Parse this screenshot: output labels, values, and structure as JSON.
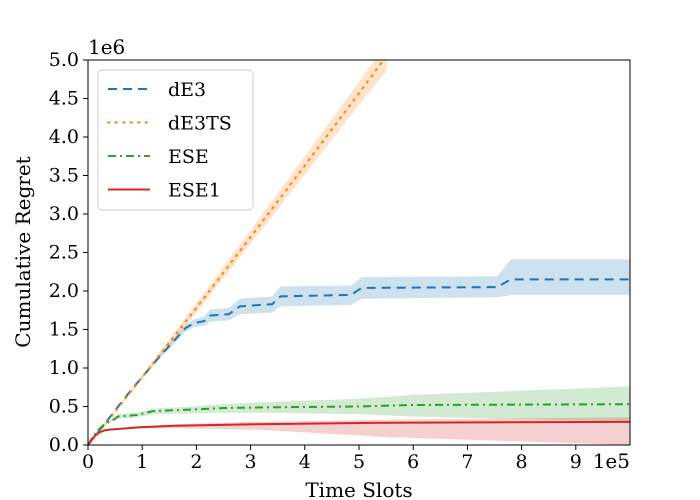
{
  "chart_data": {
    "type": "line",
    "title": "",
    "xlabel": "Time Slots",
    "ylabel": "Cumulative Regret",
    "x_offset_label": "1e5",
    "y_offset_label": "1e6",
    "xlim": [
      0,
      10
    ],
    "ylim": [
      0,
      5.0
    ],
    "xticks": [
      0,
      1,
      2,
      3,
      4,
      5,
      6,
      7,
      8,
      9
    ],
    "xtick_labels": [
      "0",
      "1",
      "2",
      "3",
      "4",
      "5",
      "6",
      "7",
      "8",
      "9"
    ],
    "yticks": [
      0,
      0.5,
      1.0,
      1.5,
      2.0,
      2.5,
      3.0,
      3.5,
      4.0,
      4.5,
      5.0
    ],
    "ytick_labels": [
      "0.0",
      "0.5",
      "1.0",
      "1.5",
      "2.0",
      "2.5",
      "3.0",
      "3.5",
      "4.0",
      "4.5",
      "5.0"
    ],
    "grid": false,
    "legend_position": "upper-left",
    "series": [
      {
        "name": "dE3",
        "color": "#1f77b4",
        "dash": "dashed",
        "points": [
          [
            0,
            0
          ],
          [
            0.3,
            0.27
          ],
          [
            0.8,
            0.72
          ],
          [
            1.3,
            1.13
          ],
          [
            1.8,
            1.52
          ],
          [
            1.95,
            1.58
          ],
          [
            2.15,
            1.61
          ],
          [
            2.25,
            1.68
          ],
          [
            2.6,
            1.7
          ],
          [
            2.8,
            1.8
          ],
          [
            3.4,
            1.83
          ],
          [
            3.55,
            1.93
          ],
          [
            4.85,
            1.95
          ],
          [
            5.05,
            2.04
          ],
          [
            7.55,
            2.05
          ],
          [
            7.8,
            2.15
          ],
          [
            10,
            2.15
          ]
        ],
        "upper": [
          [
            0,
            0
          ],
          [
            0.3,
            0.27
          ],
          [
            0.8,
            0.72
          ],
          [
            1.3,
            1.16
          ],
          [
            1.8,
            1.56
          ],
          [
            1.95,
            1.63
          ],
          [
            2.15,
            1.67
          ],
          [
            2.25,
            1.76
          ],
          [
            2.6,
            1.78
          ],
          [
            2.8,
            1.9
          ],
          [
            3.4,
            1.93
          ],
          [
            3.55,
            2.06
          ],
          [
            4.85,
            2.07
          ],
          [
            5.05,
            2.18
          ],
          [
            7.55,
            2.19
          ],
          [
            7.8,
            2.41
          ],
          [
            10,
            2.41
          ]
        ],
        "lower": [
          [
            0,
            0
          ],
          [
            0.3,
            0.27
          ],
          [
            0.8,
            0.72
          ],
          [
            1.3,
            1.11
          ],
          [
            1.8,
            1.47
          ],
          [
            1.95,
            1.53
          ],
          [
            2.15,
            1.55
          ],
          [
            2.25,
            1.6
          ],
          [
            2.6,
            1.62
          ],
          [
            2.8,
            1.7
          ],
          [
            3.4,
            1.72
          ],
          [
            3.55,
            1.8
          ],
          [
            4.85,
            1.82
          ],
          [
            5.05,
            1.9
          ],
          [
            7.55,
            1.92
          ],
          [
            7.8,
            1.95
          ],
          [
            10,
            1.95
          ]
        ]
      },
      {
        "name": "dE3TS",
        "color": "#ff7f0e",
        "dash": "dotted",
        "points": [
          [
            0,
            0
          ],
          [
            0.25,
            0.21
          ],
          [
            1,
            0.88
          ],
          [
            2,
            1.78
          ],
          [
            3,
            2.7
          ],
          [
            4,
            3.63
          ],
          [
            5,
            4.57
          ],
          [
            5.45,
            5.0
          ]
        ],
        "upper": [
          [
            0,
            0
          ],
          [
            0.25,
            0.22
          ],
          [
            1,
            0.91
          ],
          [
            2,
            1.84
          ],
          [
            3,
            2.79
          ],
          [
            4,
            3.75
          ],
          [
            5,
            4.72
          ],
          [
            5.55,
            5.25
          ]
        ],
        "lower": [
          [
            0,
            0
          ],
          [
            0.25,
            0.2
          ],
          [
            1,
            0.85
          ],
          [
            2,
            1.72
          ],
          [
            3,
            2.61
          ],
          [
            4,
            3.51
          ],
          [
            5,
            4.42
          ],
          [
            5.5,
            4.85
          ]
        ]
      },
      {
        "name": "ESE",
        "color": "#2ca02c",
        "dash": "dashdot",
        "points": [
          [
            0,
            0
          ],
          [
            0.1,
            0.12
          ],
          [
            0.2,
            0.2
          ],
          [
            0.3,
            0.27
          ],
          [
            0.5,
            0.34
          ],
          [
            0.55,
            0.37
          ],
          [
            0.9,
            0.39
          ],
          [
            1.2,
            0.44
          ],
          [
            1.9,
            0.46
          ],
          [
            2.5,
            0.48
          ],
          [
            3.4,
            0.49
          ],
          [
            5,
            0.5
          ],
          [
            6,
            0.52
          ],
          [
            10,
            0.53
          ]
        ],
        "upper": [
          [
            0,
            0
          ],
          [
            0.1,
            0.12
          ],
          [
            0.2,
            0.21
          ],
          [
            0.3,
            0.29
          ],
          [
            0.5,
            0.36
          ],
          [
            0.55,
            0.4
          ],
          [
            0.9,
            0.42
          ],
          [
            1.2,
            0.47
          ],
          [
            1.9,
            0.5
          ],
          [
            2.5,
            0.53
          ],
          [
            3.4,
            0.56
          ],
          [
            5,
            0.6
          ],
          [
            6,
            0.65
          ],
          [
            10,
            0.76
          ]
        ],
        "lower": [
          [
            0,
            0
          ],
          [
            0.1,
            0.11
          ],
          [
            0.2,
            0.19
          ],
          [
            0.3,
            0.25
          ],
          [
            0.5,
            0.32
          ],
          [
            0.55,
            0.34
          ],
          [
            0.9,
            0.36
          ],
          [
            1.2,
            0.4
          ],
          [
            1.9,
            0.41
          ],
          [
            2.5,
            0.42
          ],
          [
            3.4,
            0.42
          ],
          [
            5,
            0.4
          ],
          [
            6,
            0.37
          ],
          [
            10,
            0.3
          ]
        ]
      },
      {
        "name": "ESE1",
        "color": "#d62728",
        "dash": "solid",
        "points": [
          [
            0,
            0
          ],
          [
            0.1,
            0.1
          ],
          [
            0.2,
            0.16
          ],
          [
            0.3,
            0.19
          ],
          [
            0.4,
            0.2
          ],
          [
            0.6,
            0.21
          ],
          [
            0.95,
            0.23
          ],
          [
            1.6,
            0.25
          ],
          [
            3.1,
            0.27
          ],
          [
            5.6,
            0.29
          ],
          [
            10,
            0.3
          ]
        ],
        "upper": [
          [
            0,
            0
          ],
          [
            0.1,
            0.11
          ],
          [
            0.2,
            0.17
          ],
          [
            0.3,
            0.2
          ],
          [
            0.4,
            0.21
          ],
          [
            0.6,
            0.22
          ],
          [
            0.95,
            0.24
          ],
          [
            1.6,
            0.27
          ],
          [
            3.1,
            0.3
          ],
          [
            5.6,
            0.33
          ],
          [
            10,
            0.36
          ]
        ],
        "lower": [
          [
            0,
            0
          ],
          [
            0.1,
            0.09
          ],
          [
            0.2,
            0.15
          ],
          [
            0.3,
            0.18
          ],
          [
            0.4,
            0.19
          ],
          [
            0.6,
            0.2
          ],
          [
            0.95,
            0.21
          ],
          [
            1.6,
            0.22
          ],
          [
            3.1,
            0.2
          ],
          [
            5.6,
            0.1
          ],
          [
            10,
            0.0
          ]
        ]
      }
    ]
  }
}
